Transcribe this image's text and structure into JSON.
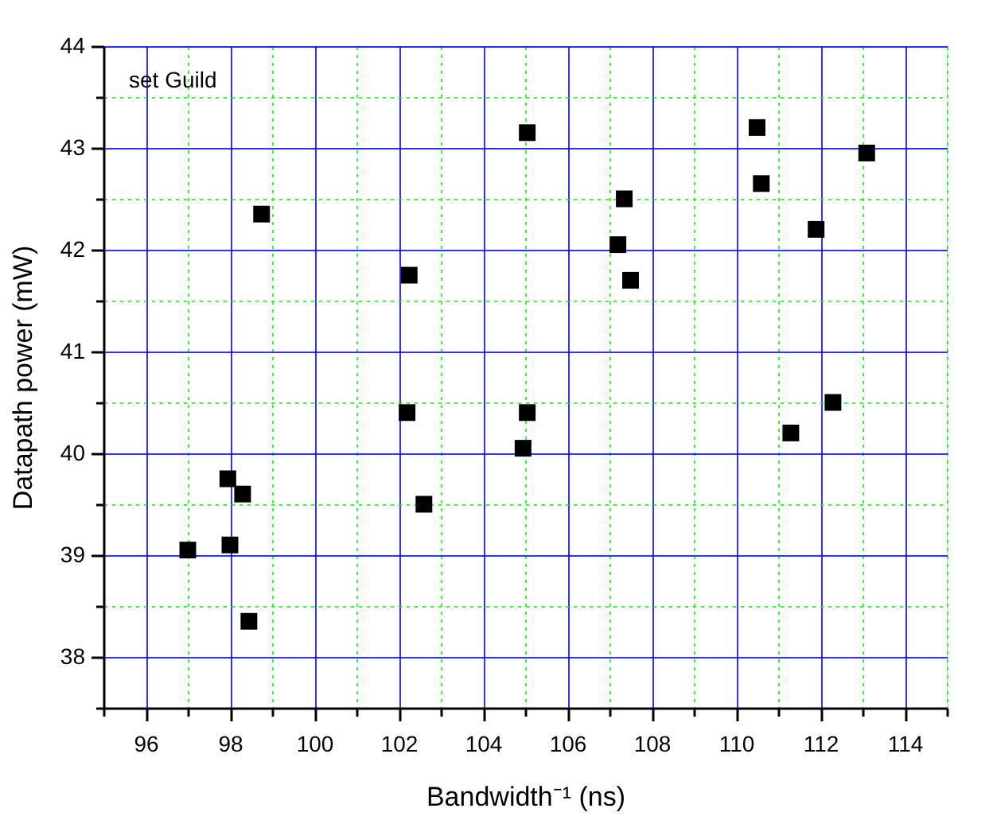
{
  "chart_data": {
    "type": "scatter",
    "xlabel": "Bandwidth⁻¹  (ns)",
    "ylabel": "Datapath power  (mW)",
    "annotations": [
      "set Guild"
    ],
    "marker": "square",
    "grid": true,
    "xlim": [
      95,
      115
    ],
    "ylim": [
      37.5,
      44
    ],
    "xticks": [
      {
        "value": 95,
        "label": null
      },
      96,
      {
        "value": 97,
        "label": null
      },
      98,
      {
        "value": 99,
        "label": null
      },
      100,
      {
        "value": 101,
        "label": null
      },
      102,
      {
        "value": 103,
        "label": null
      },
      104,
      {
        "value": 105,
        "label": null
      },
      106,
      {
        "value": 107,
        "label": null
      },
      108,
      {
        "value": 109,
        "label": null
      },
      110,
      {
        "value": 111,
        "label": null
      },
      112,
      {
        "value": 113,
        "label": null
      },
      114,
      {
        "value": 115,
        "label": null
      }
    ],
    "yticks": [
      {
        "value": 37.5,
        "label": null
      },
      38,
      {
        "value": 38.5,
        "label": null
      },
      39,
      {
        "value": 39.5,
        "label": null
      },
      40,
      {
        "value": 40.5,
        "label": null
      },
      41,
      {
        "value": 41.5,
        "label": null
      },
      42,
      {
        "value": 42.5,
        "label": null
      },
      43,
      {
        "value": 43.5,
        "label": null
      },
      44
    ],
    "series": [
      {
        "color": "#000000",
        "x": [
          97.0,
          97.95,
          98.3,
          98.0,
          98.45,
          98.75,
          102.25,
          102.2,
          102.6,
          104.95,
          105.05,
          105.05,
          107.35,
          107.2,
          107.5,
          110.5,
          110.6,
          111.9,
          113.1,
          112.3,
          111.3
        ],
        "values": [
          39.05,
          39.75,
          39.6,
          39.1,
          38.35,
          42.35,
          41.75,
          40.4,
          39.5,
          40.05,
          40.4,
          43.15,
          42.5,
          42.05,
          41.7,
          43.2,
          42.65,
          42.2,
          42.95,
          40.5,
          40.2
        ]
      }
    ]
  }
}
